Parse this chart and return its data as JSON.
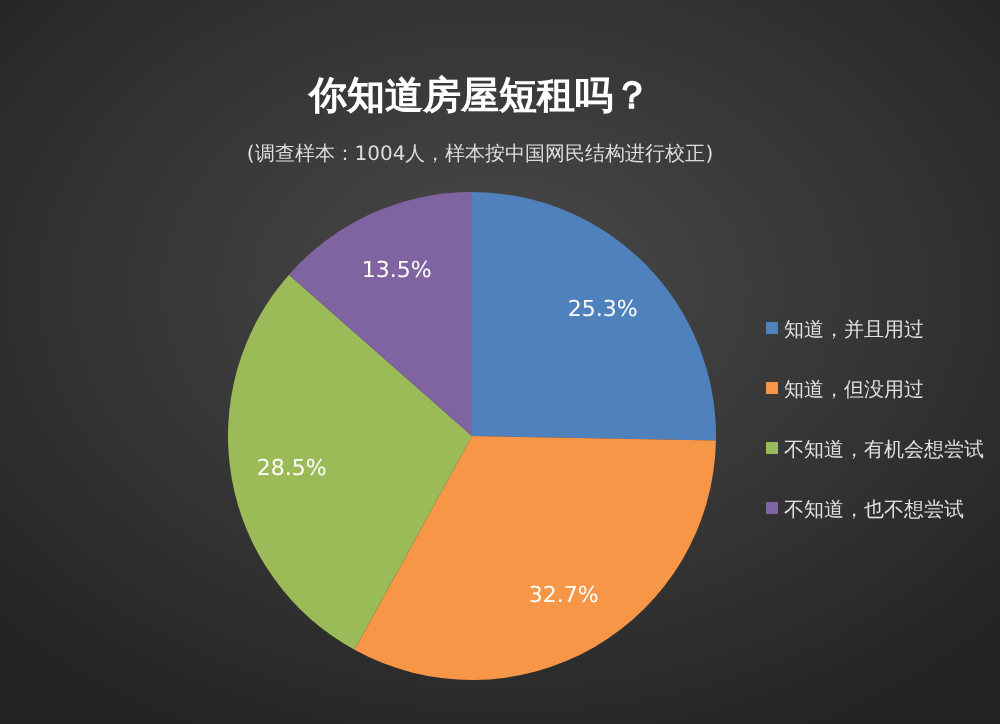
{
  "chart_data": {
    "type": "pie",
    "title": "你知道房屋短租吗？",
    "subtitle": "(调查样本：1004人，样本按中国网民结构进行校正)",
    "categories": [
      "知道，并且用过",
      "知道，但没用过",
      "不知道，有机会想尝试",
      "不知道，也不想尝试"
    ],
    "values": [
      25.3,
      32.7,
      28.5,
      13.5
    ],
    "colors": [
      "#4f81bd",
      "#f79646",
      "#9bbb59",
      "#8064a2"
    ],
    "value_labels": [
      "25.3%",
      "32.7%",
      "28.5%",
      "13.5%"
    ],
    "legend": "right"
  }
}
